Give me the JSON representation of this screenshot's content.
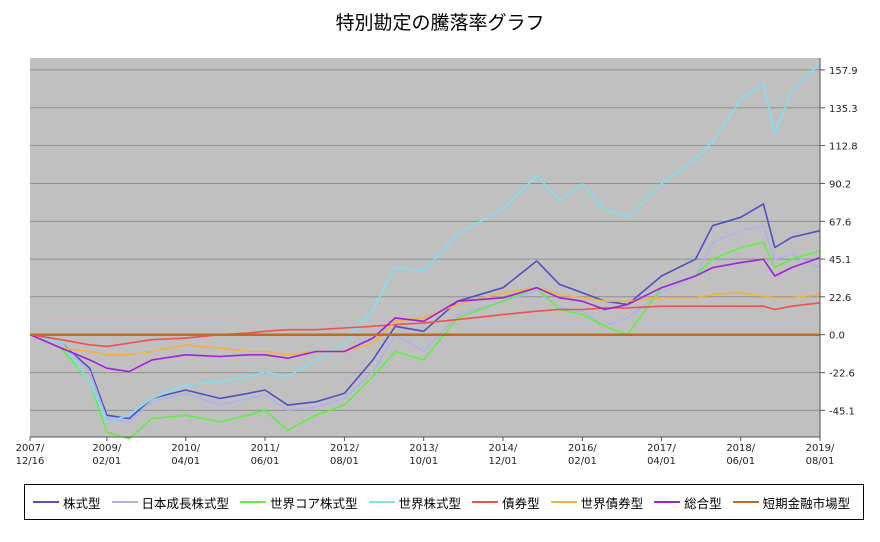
{
  "chart_data": {
    "type": "line",
    "title": "特別勘定の騰落率グラフ",
    "xlabel": "",
    "ylabel": "",
    "x_range": [
      "2007-12-16",
      "2019-08-01"
    ],
    "ylim": [
      -61,
      165
    ],
    "y_axis_side": "right",
    "grid": "horizontal",
    "legend_position": "bottom",
    "plot_background": "#c0c0c0",
    "x_ticks": [
      {
        "line1": "2007/",
        "line2": "12/16",
        "date": "2007-12-16"
      },
      {
        "line1": "2009/",
        "line2": "02/01",
        "date": "2009-02-01"
      },
      {
        "line1": "2010/",
        "line2": "04/01",
        "date": "2010-04-01"
      },
      {
        "line1": "2011/",
        "line2": "06/01",
        "date": "2011-06-01"
      },
      {
        "line1": "2012/",
        "line2": "08/01",
        "date": "2012-08-01"
      },
      {
        "line1": "2013/",
        "line2": "10/01",
        "date": "2013-10-01"
      },
      {
        "line1": "2014/",
        "line2": "12/01",
        "date": "2014-12-01"
      },
      {
        "line1": "2016/",
        "line2": "02/01",
        "date": "2016-02-01"
      },
      {
        "line1": "2017/",
        "line2": "04/01",
        "date": "2017-04-01"
      },
      {
        "line1": "2018/",
        "line2": "06/01",
        "date": "2018-06-01"
      },
      {
        "line1": "2019/",
        "line2": "08/01",
        "date": "2019-08-01"
      }
    ],
    "y_ticks": [
      {
        "value": 157.9,
        "label": "157.9"
      },
      {
        "value": 135.3,
        "label": "135.3"
      },
      {
        "value": 112.8,
        "label": "112.8"
      },
      {
        "value": 90.2,
        "label": "90.2"
      },
      {
        "value": 67.6,
        "label": "67.6"
      },
      {
        "value": 45.1,
        "label": "45.1"
      },
      {
        "value": 22.6,
        "label": "22.6"
      },
      {
        "value": 0.0,
        "label": "0.0"
      },
      {
        "value": -22.6,
        "label": "-22.6"
      },
      {
        "value": -45.1,
        "label": "-45.1"
      }
    ],
    "x": [
      "2007-12-16",
      "2008-06-01",
      "2008-11-01",
      "2009-02-01",
      "2009-06-01",
      "2009-10-01",
      "2010-04-01",
      "2010-10-01",
      "2011-03-01",
      "2011-06-01",
      "2011-10-01",
      "2012-03-01",
      "2012-08-01",
      "2013-01-01",
      "2013-05-01",
      "2013-10-01",
      "2014-04-01",
      "2014-12-01",
      "2015-06-01",
      "2015-10-01",
      "2016-02-01",
      "2016-06-01",
      "2016-10-01",
      "2017-04-01",
      "2017-10-01",
      "2018-01-01",
      "2018-06-01",
      "2018-10-01",
      "2018-12-01",
      "2019-03-01",
      "2019-08-01"
    ],
    "series": [
      {
        "name": "株式型",
        "color": "#5050c0",
        "values": [
          0,
          -5,
          -20,
          -48,
          -50,
          -38,
          -33,
          -38,
          -35,
          -33,
          -42,
          -40,
          -35,
          -15,
          5,
          2,
          20,
          28,
          44,
          30,
          25,
          20,
          18,
          35,
          45,
          65,
          70,
          78,
          52,
          58,
          62
        ]
      },
      {
        "name": "日本成長株式型",
        "color": "#b0b0ee",
        "values": [
          0,
          -5,
          -22,
          -50,
          -52,
          -40,
          -35,
          -42,
          -38,
          -36,
          -45,
          -43,
          -38,
          -22,
          0,
          -10,
          12,
          20,
          26,
          16,
          14,
          5,
          10,
          25,
          35,
          55,
          62,
          65,
          45,
          48,
          40
        ]
      },
      {
        "name": "世界コア株式型",
        "color": "#60ee40",
        "values": [
          0,
          -8,
          -28,
          -58,
          -62,
          -50,
          -48,
          -52,
          -48,
          -45,
          -57,
          -48,
          -42,
          -25,
          -10,
          -15,
          10,
          20,
          28,
          15,
          12,
          5,
          0,
          28,
          35,
          45,
          52,
          55,
          40,
          45,
          50
        ]
      },
      {
        "name": "世界株式型",
        "color": "#80e0f0",
        "values": [
          0,
          -5,
          -28,
          -52,
          -48,
          -38,
          -30,
          -28,
          -25,
          -22,
          -25,
          -15,
          -5,
          15,
          40,
          38,
          60,
          75,
          95,
          80,
          90,
          75,
          70,
          90,
          105,
          115,
          140,
          150,
          120,
          145,
          162
        ]
      },
      {
        "name": "債券型",
        "color": "#f05050",
        "values": [
          0,
          -3,
          -6,
          -7,
          -5,
          -3,
          -2,
          0,
          1,
          2,
          3,
          3,
          4,
          5,
          6,
          7,
          9,
          12,
          14,
          15,
          15,
          16,
          16,
          17,
          17,
          17,
          17,
          17,
          15,
          17,
          19
        ]
      },
      {
        "name": "世界債券型",
        "color": "#f5b040",
        "values": [
          0,
          -8,
          -10,
          -12,
          -12,
          -10,
          -6,
          -8,
          -10,
          -10,
          -12,
          -10,
          -10,
          -5,
          8,
          10,
          18,
          25,
          28,
          24,
          22,
          20,
          20,
          22,
          22,
          24,
          25,
          23,
          22,
          22,
          24
        ]
      },
      {
        "name": "総合型",
        "color": "#a020e0",
        "values": [
          0,
          -8,
          -15,
          -20,
          -22,
          -15,
          -12,
          -13,
          -12,
          -12,
          -14,
          -10,
          -10,
          -2,
          10,
          8,
          20,
          22,
          28,
          22,
          20,
          15,
          18,
          28,
          35,
          40,
          43,
          45,
          35,
          40,
          46
        ]
      },
      {
        "name": "短期金融市場型",
        "color": "#c06a20",
        "values": [
          0,
          0,
          0,
          0,
          0,
          0,
          0,
          0,
          0,
          0,
          0,
          0,
          0,
          0,
          0,
          0,
          0,
          0,
          0,
          0,
          0,
          0,
          0,
          0,
          0,
          0,
          0,
          0,
          0,
          0,
          0
        ]
      }
    ]
  }
}
